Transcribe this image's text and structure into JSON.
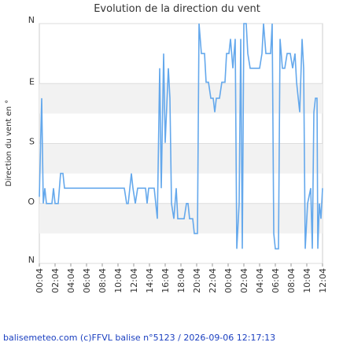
{
  "chart_data": {
    "type": "line",
    "title": "Evolution de la direction du vent",
    "y_label": "Direction du vent en °",
    "footer": "balisemeteo.com (c)FFVL balise n°5123 / 2026-09-06 12:17:13",
    "xlim": [
      0,
      36
    ],
    "ylim": [
      0,
      360
    ],
    "xticks": [
      {
        "value": 0,
        "label": "00:04"
      },
      {
        "value": 2,
        "label": "02:04"
      },
      {
        "value": 4,
        "label": "04:04"
      },
      {
        "value": 6,
        "label": "06:04"
      },
      {
        "value": 8,
        "label": "08:04"
      },
      {
        "value": 10,
        "label": "10:04"
      },
      {
        "value": 12,
        "label": "12:04"
      },
      {
        "value": 14,
        "label": "14:04"
      },
      {
        "value": 16,
        "label": "16:04"
      },
      {
        "value": 18,
        "label": "18:04"
      },
      {
        "value": 20,
        "label": "20:04"
      },
      {
        "value": 22,
        "label": "22:04"
      },
      {
        "value": 24,
        "label": "00:04"
      },
      {
        "value": 26,
        "label": "02:04"
      },
      {
        "value": 28,
        "label": "04:04"
      },
      {
        "value": 30,
        "label": "06:04"
      },
      {
        "value": 32,
        "label": "08:04"
      },
      {
        "value": 34,
        "label": "10:04"
      },
      {
        "value": 36,
        "label": "12:04"
      }
    ],
    "yticks": [
      {
        "value": 0,
        "label": "N"
      },
      {
        "value": 90,
        "label": "O"
      },
      {
        "value": 180,
        "label": "S"
      },
      {
        "value": 270,
        "label": "E"
      },
      {
        "value": 360,
        "label": "N"
      }
    ],
    "grid": true,
    "series": [
      {
        "color": "#64a8ec",
        "x": [
          0,
          0.2,
          0.3,
          0.5,
          0.7,
          0.9,
          1.6,
          1.8,
          2,
          2.4,
          2.7,
          3,
          3.2,
          10.8,
          11.1,
          11.3,
          11.7,
          11.9,
          12.2,
          12.5,
          13.5,
          13.7,
          13.9,
          14.6,
          15,
          15.3,
          15.5,
          15.8,
          16,
          16.4,
          16.6,
          16.8,
          17.1,
          17.4,
          17.6,
          18.4,
          18.7,
          18.9,
          19.1,
          19.5,
          19.7,
          20.1,
          20.3,
          20.6,
          21,
          21.2,
          21.5,
          21.8,
          22.1,
          22.3,
          22.5,
          22.9,
          23.2,
          23.6,
          23.8,
          24.1,
          24.3,
          24.6,
          24.9,
          25.1,
          25.4,
          25.6,
          25.8,
          26,
          26.3,
          26.5,
          26.8,
          28,
          28.3,
          28.5,
          28.8,
          29.4,
          29.6,
          29.8,
          30,
          30.4,
          30.6,
          30.9,
          31.2,
          31.5,
          31.9,
          32.2,
          32.5,
          32.7,
          33.1,
          33.4,
          33.6,
          33.8,
          34.1,
          34.5,
          34.7,
          34.9,
          35.1,
          35.3,
          35.4,
          35.6,
          35.8,
          36
        ],
        "values": [
          100,
          200,
          248,
          90,
          113,
          90,
          90,
          113,
          90,
          90,
          135,
          135,
          113,
          113,
          90,
          90,
          135,
          113,
          90,
          113,
          113,
          90,
          113,
          113,
          67,
          293,
          113,
          315,
          181,
          293,
          248,
          90,
          67,
          113,
          67,
          67,
          90,
          90,
          67,
          67,
          45,
          45,
          360,
          315,
          315,
          272,
          272,
          248,
          248,
          227,
          248,
          248,
          272,
          272,
          315,
          315,
          337,
          293,
          337,
          22,
          90,
          337,
          22,
          360,
          360,
          315,
          293,
          293,
          315,
          360,
          315,
          315,
          360,
          45,
          22,
          22,
          337,
          293,
          293,
          315,
          315,
          293,
          315,
          272,
          227,
          337,
          293,
          22,
          90,
          113,
          22,
          227,
          248,
          248,
          22,
          90,
          67,
          113
        ]
      }
    ]
  }
}
